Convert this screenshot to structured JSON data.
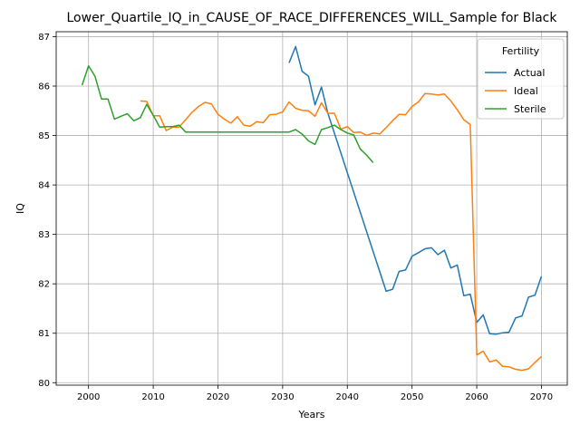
{
  "chart_data": {
    "type": "line",
    "title": "Lower_Quartile_IQ_in_CAUSE_OF_RACE_DIFFERENCES_WILL_Sample for Black",
    "xlabel": "Years",
    "ylabel": "IQ",
    "xlim": [
      1995,
      2074
    ],
    "ylim": [
      79.95,
      87.1
    ],
    "x_ticks": [
      2000,
      2010,
      2020,
      2030,
      2040,
      2050,
      2060,
      2070
    ],
    "y_ticks": [
      80,
      81,
      82,
      83,
      84,
      85,
      86,
      87
    ],
    "grid": true,
    "legend": {
      "title": "Fertility",
      "placement": "top-right"
    },
    "series": [
      {
        "name": "Actual",
        "color": "#1f77b4",
        "x": [
          2031,
          2032,
          2033,
          2034,
          2035,
          2036,
          2037,
          2046,
          2047,
          2048,
          2049,
          2050,
          2051,
          2052,
          2053,
          2054,
          2055,
          2056,
          2057,
          2058,
          2059,
          2060,
          2061,
          2062,
          2063,
          2064,
          2065,
          2066,
          2067,
          2068,
          2069,
          2070
        ],
        "values": [
          86.47,
          86.8,
          86.3,
          86.2,
          85.62,
          85.98,
          85.45,
          81.85,
          81.89,
          82.25,
          82.28,
          82.56,
          82.63,
          82.71,
          82.73,
          82.59,
          82.68,
          82.32,
          82.38,
          81.76,
          81.79,
          81.22,
          81.37,
          80.99,
          80.98,
          81.01,
          81.02,
          81.31,
          81.35,
          81.73,
          81.77,
          82.15
        ]
      },
      {
        "name": "Ideal",
        "color": "#ff7f0e",
        "x": [
          2008,
          2009,
          2010,
          2011,
          2012,
          2013,
          2014,
          2015,
          2016,
          2017,
          2018,
          2019,
          2020,
          2021,
          2022,
          2023,
          2024,
          2025,
          2026,
          2027,
          2028,
          2029,
          2030,
          2031,
          2032,
          2033,
          2034,
          2035,
          2036,
          2037,
          2038,
          2039,
          2040,
          2041,
          2042,
          2043,
          2044,
          2045,
          2046,
          2047,
          2048,
          2049,
          2050,
          2051,
          2052,
          2053,
          2054,
          2055,
          2056,
          2057,
          2058,
          2059,
          2060,
          2061,
          2062,
          2063,
          2064,
          2065,
          2066,
          2067,
          2068,
          2069,
          2070
        ],
        "values": [
          85.7,
          85.69,
          85.4,
          85.4,
          85.1,
          85.17,
          85.17,
          85.32,
          85.47,
          85.59,
          85.67,
          85.64,
          85.43,
          85.33,
          85.25,
          85.38,
          85.21,
          85.19,
          85.28,
          85.26,
          85.42,
          85.43,
          85.48,
          85.68,
          85.55,
          85.51,
          85.5,
          85.39,
          85.66,
          85.45,
          85.45,
          85.13,
          85.18,
          85.06,
          85.07,
          85.0,
          85.05,
          85.03,
          85.16,
          85.3,
          85.43,
          85.42,
          85.59,
          85.68,
          85.85,
          85.84,
          85.82,
          85.84,
          85.7,
          85.52,
          85.32,
          85.22,
          80.56,
          80.64,
          80.42,
          80.46,
          80.33,
          80.32,
          80.27,
          80.25,
          80.28,
          80.41,
          80.53
        ]
      },
      {
        "name": "Sterile",
        "color": "#2ca02c",
        "x": [
          1999,
          2000,
          2001,
          2002,
          2003,
          2004,
          2005,
          2006,
          2007,
          2008,
          2009,
          2010,
          2011,
          2012,
          2013,
          2014,
          2015,
          2016,
          2017,
          2018,
          2019,
          2020,
          2021,
          2022,
          2023,
          2024,
          2025,
          2026,
          2027,
          2028,
          2029,
          2030,
          2031,
          2032,
          2033,
          2034,
          2035,
          2036,
          2037,
          2038,
          2039,
          2040,
          2041,
          2042,
          2043,
          2044
        ],
        "values": [
          86.02,
          86.41,
          86.2,
          85.74,
          85.74,
          85.33,
          85.39,
          85.44,
          85.3,
          85.36,
          85.63,
          85.41,
          85.17,
          85.18,
          85.18,
          85.21,
          85.07,
          85.07,
          85.07,
          85.07,
          85.07,
          85.07,
          85.07,
          85.07,
          85.07,
          85.07,
          85.07,
          85.07,
          85.07,
          85.07,
          85.07,
          85.07,
          85.07,
          85.12,
          85.03,
          84.89,
          84.82,
          85.12,
          85.16,
          85.21,
          85.12,
          85.05,
          85.01,
          84.73,
          84.6,
          84.45
        ]
      }
    ]
  }
}
